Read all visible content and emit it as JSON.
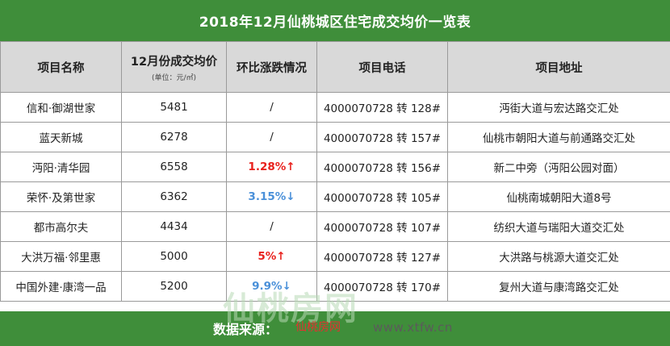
{
  "title": "2018年12月仙桃城区住宅成交均价一览表",
  "headers": {
    "name": "项目名称",
    "price": "12月份成交均价",
    "price_unit": "(单位：元/㎡)",
    "change": "环比涨跌情况",
    "phone": "项目电话",
    "address": "项目地址"
  },
  "rows": [
    {
      "name": "信和·御湖世家",
      "price": "5481",
      "change": "/",
      "phone": "4000070728 转 128#",
      "address": "沔街大道与宏达路交汇处"
    },
    {
      "name": "蓝天新城",
      "price": "6278",
      "change": "/",
      "phone": "4000070728 转 157#",
      "address": "仙桃市朝阳大道与前通路交汇处"
    },
    {
      "name": "沔阳·清华园",
      "price": "6558",
      "change": "1.28%↑",
      "phone": "4000070728 转 156#",
      "address": "新二中旁（沔阳公园对面）"
    },
    {
      "name": "荣怀·及第世家",
      "price": "6362",
      "change": "3.15%↓",
      "phone": "4000070728 转 105#",
      "address": "仙桃南城朝阳大道8号"
    },
    {
      "name": "都市高尔夫",
      "price": "4434",
      "change": "/",
      "phone": "4000070728 转 107#",
      "address": "纺织大道与瑞阳大道交汇处"
    },
    {
      "name": "大洪万福·邻里惠",
      "price": "5000",
      "change": "5%↑",
      "phone": "4000070728 转 127#",
      "address": "大洪路与桃源大道交汇处"
    },
    {
      "name": "中国外建·康湾一品",
      "price": "5200",
      "change": "9.9%↓",
      "phone": "4000070728 转 170#",
      "address": "复州大道与康湾路交汇处"
    }
  ],
  "footer": {
    "source_label": "数据来源：",
    "source_site": "仙桃房网",
    "source_url": "www.xtfw.cn"
  },
  "watermark": "仙桃房网",
  "colors": {
    "header_green": "#3f8e3a",
    "up_red": "#e8201c",
    "down_blue": "#4a90d9",
    "header_gray": "#d9d9d9"
  }
}
